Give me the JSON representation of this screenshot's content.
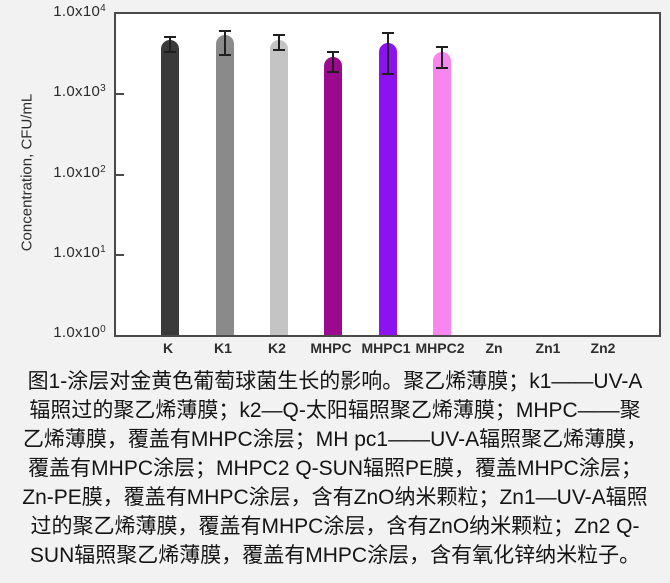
{
  "chart_data": {
    "type": "bar",
    "title": "",
    "xlabel": "",
    "ylabel": "Concentration, CFU/mL",
    "yscale": "log",
    "ylim": [
      1,
      10000
    ],
    "grid": false,
    "legend": null,
    "yticks": [
      {
        "base": "1.0x10",
        "exp": "4"
      },
      {
        "base": "1.0x10",
        "exp": "3"
      },
      {
        "base": "1.0x10",
        "exp": "2"
      },
      {
        "base": "1.0x10",
        "exp": "1"
      },
      {
        "base": "1.0x10",
        "exp": "0"
      }
    ],
    "categories": [
      "K",
      "K1",
      "K2",
      "MHPC",
      "MHPC1",
      "MHPC2",
      "Zn",
      "Zn1",
      "Zn2"
    ],
    "values": [
      4800,
      5400,
      4700,
      2900,
      4400,
      3400,
      0,
      0,
      0
    ],
    "error_low": [
      3400,
      3100,
      3600,
      1900,
      1800,
      2100,
      null,
      null,
      null
    ],
    "error_high": [
      5100,
      6200,
      5400,
      3400,
      5800,
      3900,
      null,
      null,
      null
    ],
    "bar_colors": [
      "#3a3a3a",
      "#8a8a8a",
      "#c4c4c4",
      "#9b0a8e",
      "#8c12f2",
      "#f787ef",
      null,
      null,
      null
    ],
    "colors": {
      "frame": "#4a4a4a",
      "plot_background": "#ffffff",
      "page_background": "#f2f2f2",
      "error_bar": "#1f1f1f",
      "axis_text": "#2b2b2b"
    }
  },
  "caption": {
    "lines": [
      "图1-涂层对金黄色葡萄球菌生长的影响。聚乙烯薄膜；k1——UV-A",
      "辐照过的聚乙烯薄膜；k2—Q-太阳辐照聚乙烯薄膜；MHPC——聚",
      "乙烯薄膜，覆盖有MHPC涂层；MH pc1——UV-A辐照聚乙烯薄膜，",
      "覆盖有MHPC涂层；MHPC2 Q-SUN辐照PE膜，覆盖MHPC涂层；",
      "Zn-PE膜，覆盖有MHPC涂层，含有ZnO纳米颗粒；Zn1—UV-A辐照",
      "过的聚乙烯薄膜，覆盖有MHPC涂层，含有ZnO纳米颗粒；Zn2 Q-",
      "SUN辐照聚乙烯薄膜，覆盖有MHPC涂层，含有氧化锌纳米粒子。"
    ]
  }
}
